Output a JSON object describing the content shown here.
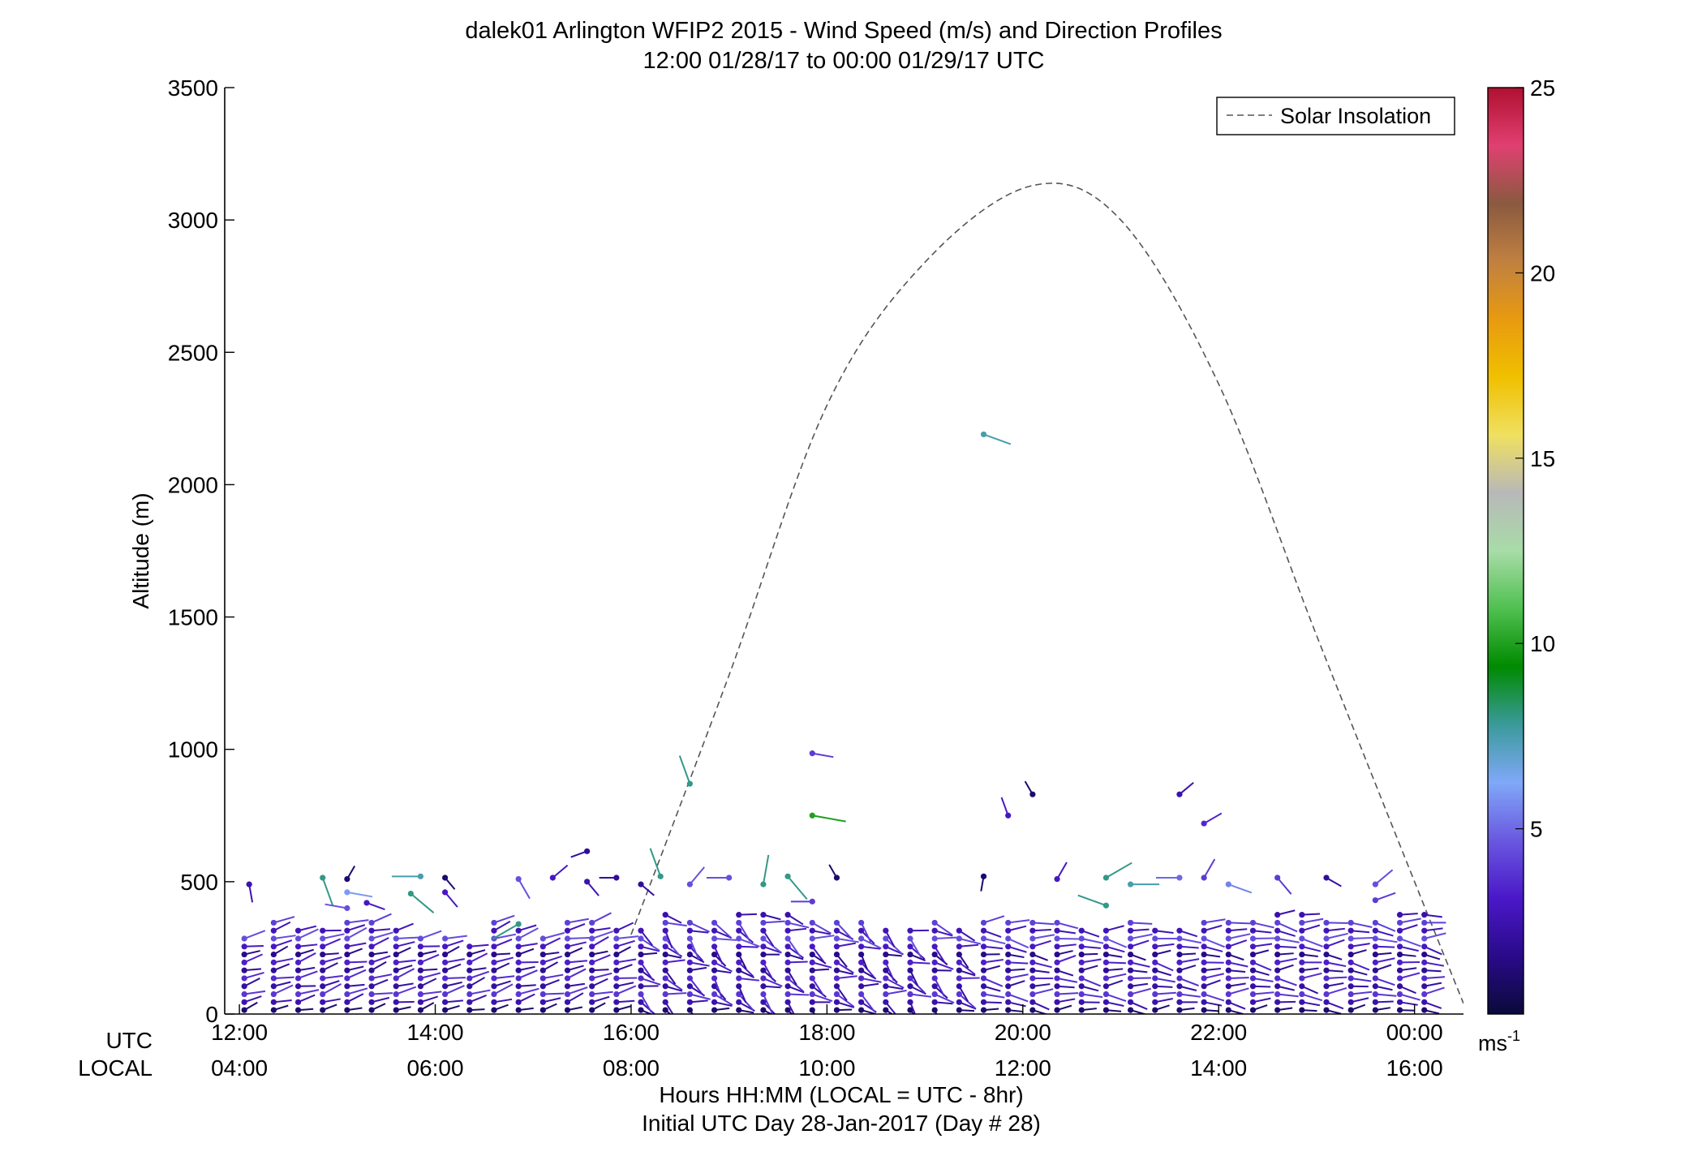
{
  "chart_data": {
    "type": "wind-barb-profile",
    "title": "dalek01 Arlington WFIP2 2015 - Wind Speed (m/s) and Direction Profiles",
    "subtitle": "12:00 01/28/17 to 00:00 01/29/17  UTC",
    "ylabel": "Altitude (m)",
    "xlabel": "Hours HH:MM  (LOCAL = UTC - 8hr)",
    "xlabel2": "Initial UTC Day 28-Jan-2017 (Day # 28)",
    "utc_label": "UTC",
    "local_label": "LOCAL",
    "ylim": [
      0,
      3500
    ],
    "xlim_hours": [
      11.85,
      24.5
    ],
    "y_ticks": [
      "0",
      "500",
      "1000",
      "1500",
      "2000",
      "2500",
      "3000",
      "3500"
    ],
    "y_tick_values": [
      0,
      500,
      1000,
      1500,
      2000,
      2500,
      3000,
      3500
    ],
    "x_tick_hours": [
      12,
      14,
      16,
      18,
      20,
      22,
      24
    ],
    "x_ticks_utc": [
      "12:00",
      "14:00",
      "16:00",
      "18:00",
      "20:00",
      "22:00",
      "00:00"
    ],
    "x_ticks_local": [
      "04:00",
      "06:00",
      "08:00",
      "10:00",
      "12:00",
      "14:00",
      "16:00"
    ],
    "legend": {
      "label": "Solar Insolation",
      "position": "top-right"
    },
    "colorbar": {
      "range": [
        0,
        25
      ],
      "ticks": [
        "5",
        "10",
        "15",
        "20",
        "25"
      ],
      "tick_values": [
        5,
        10,
        15,
        20,
        25
      ],
      "unit": "ms",
      "unit_exp": "-1",
      "colors": [
        "#0a0a3a",
        "#2a0a8a",
        "#4a18c8",
        "#6a58e0",
        "#80a8f8",
        "#3a9a9a",
        "#008a00",
        "#50c050",
        "#a8dca8",
        "#b8b8b8",
        "#f0e060",
        "#f0c000",
        "#e89a10",
        "#c08040",
        "#8a5a40",
        "#e04070",
        "#b01030"
      ]
    },
    "solar_insolation": {
      "hours": [
        16.0,
        17.0,
        18.0,
        19.0,
        20.1,
        21.0,
        22.0,
        23.0,
        24.0,
        24.5
      ],
      "values": [
        300,
        1280,
        2300,
        2840,
        3130,
        3000,
        2380,
        1430,
        500,
        40
      ]
    },
    "profile_times_hours": [
      12.05,
      12.35,
      12.6,
      12.85,
      13.1,
      13.35,
      13.6,
      13.85,
      14.1,
      14.35,
      14.6,
      14.85,
      15.1,
      15.35,
      15.6,
      15.85,
      16.1,
      16.35,
      16.6,
      16.85,
      17.1,
      17.35,
      17.6,
      17.85,
      18.1,
      18.35,
      18.6,
      18.85,
      19.1,
      19.35,
      19.6,
      19.85,
      20.1,
      20.35,
      20.6,
      20.85,
      21.1,
      21.35,
      21.6,
      21.85,
      22.1,
      22.35,
      22.6,
      22.85,
      23.1,
      23.35,
      23.6,
      23.85,
      24.1
    ],
    "profile_top_m": [
      290,
      350,
      330,
      320,
      360,
      350,
      330,
      300,
      290,
      280,
      350,
      340,
      300,
      360,
      370,
      330,
      330,
      380,
      360,
      350,
      380,
      390,
      400,
      370,
      360,
      350,
      340,
      340,
      360,
      330,
      360,
      350,
      360,
      350,
      340,
      330,
      360,
      340,
      330,
      350,
      360,
      370,
      380,
      380,
      370,
      360,
      350,
      380,
      380
    ],
    "barb_spacing_m": 30,
    "upper_points": [
      {
        "t": 12.1,
        "alt": 490,
        "ws": 2.5,
        "wd": 170
      },
      {
        "t": 12.85,
        "alt": 515,
        "ws": 8,
        "wd": 160
      },
      {
        "t": 13.1,
        "alt": 510,
        "ws": 1,
        "wd": 30
      },
      {
        "t": 13.1,
        "alt": 460,
        "ws": 6,
        "wd": 100
      },
      {
        "t": 13.1,
        "alt": 400,
        "ws": 4.5,
        "wd": 280
      },
      {
        "t": 13.3,
        "alt": 420,
        "ws": 3,
        "wd": 110
      },
      {
        "t": 13.75,
        "alt": 455,
        "ws": 8,
        "wd": 130
      },
      {
        "t": 13.85,
        "alt": 520,
        "ws": 7.5,
        "wd": 270
      },
      {
        "t": 14.1,
        "alt": 515,
        "ws": 1,
        "wd": 140
      },
      {
        "t": 14.1,
        "alt": 460,
        "ws": 3,
        "wd": 140
      },
      {
        "t": 14.85,
        "alt": 510,
        "ws": 4.5,
        "wd": 150
      },
      {
        "t": 14.85,
        "alt": 340,
        "ws": 8,
        "wd": 240
      },
      {
        "t": 15.2,
        "alt": 515,
        "ws": 3,
        "wd": 50
      },
      {
        "t": 15.55,
        "alt": 615,
        "ws": 2,
        "wd": 250
      },
      {
        "t": 15.55,
        "alt": 500,
        "ws": 2.5,
        "wd": 140
      },
      {
        "t": 15.85,
        "alt": 515,
        "ws": 2,
        "wd": 270
      },
      {
        "t": 16.1,
        "alt": 490,
        "ws": 2,
        "wd": 130
      },
      {
        "t": 16.3,
        "alt": 520,
        "ws": 8,
        "wd": 340
      },
      {
        "t": 16.6,
        "alt": 870,
        "ws": 8,
        "wd": 340
      },
      {
        "t": 16.6,
        "alt": 490,
        "ws": 4.5,
        "wd": 40
      },
      {
        "t": 17.0,
        "alt": 515,
        "ws": 4.5,
        "wd": 270
      },
      {
        "t": 17.35,
        "alt": 490,
        "ws": 8,
        "wd": 10
      },
      {
        "t": 17.6,
        "alt": 520,
        "ws": 8,
        "wd": 140
      },
      {
        "t": 17.85,
        "alt": 985,
        "ws": 4,
        "wd": 100
      },
      {
        "t": 17.85,
        "alt": 750,
        "ws": 10,
        "wd": 100
      },
      {
        "t": 17.85,
        "alt": 425,
        "ws": 4,
        "wd": 270
      },
      {
        "t": 18.1,
        "alt": 515,
        "ws": 1,
        "wd": 330
      },
      {
        "t": 19.6,
        "alt": 2190,
        "ws": 7.5,
        "wd": 110
      },
      {
        "t": 19.6,
        "alt": 520,
        "ws": 1,
        "wd": 190
      },
      {
        "t": 19.85,
        "alt": 750,
        "ws": 3,
        "wd": 340
      },
      {
        "t": 20.1,
        "alt": 830,
        "ws": 1,
        "wd": 330
      },
      {
        "t": 20.35,
        "alt": 510,
        "ws": 3,
        "wd": 30
      },
      {
        "t": 20.85,
        "alt": 515,
        "ws": 8,
        "wd": 60
      },
      {
        "t": 20.85,
        "alt": 410,
        "ws": 8,
        "wd": 290
      },
      {
        "t": 21.1,
        "alt": 490,
        "ws": 7.5,
        "wd": 90
      },
      {
        "t": 21.6,
        "alt": 830,
        "ws": 2.5,
        "wd": 50
      },
      {
        "t": 21.85,
        "alt": 720,
        "ws": 3.5,
        "wd": 60
      },
      {
        "t": 21.6,
        "alt": 515,
        "ws": 5,
        "wd": 270
      },
      {
        "t": 21.85,
        "alt": 515,
        "ws": 4,
        "wd": 30
      },
      {
        "t": 22.1,
        "alt": 490,
        "ws": 5.5,
        "wd": 110
      },
      {
        "t": 22.6,
        "alt": 515,
        "ws": 4,
        "wd": 140
      },
      {
        "t": 23.1,
        "alt": 515,
        "ws": 2,
        "wd": 120
      },
      {
        "t": 23.6,
        "alt": 490,
        "ws": 4.5,
        "wd": 50
      },
      {
        "t": 23.6,
        "alt": 430,
        "ws": 4,
        "wd": 70
      }
    ]
  }
}
